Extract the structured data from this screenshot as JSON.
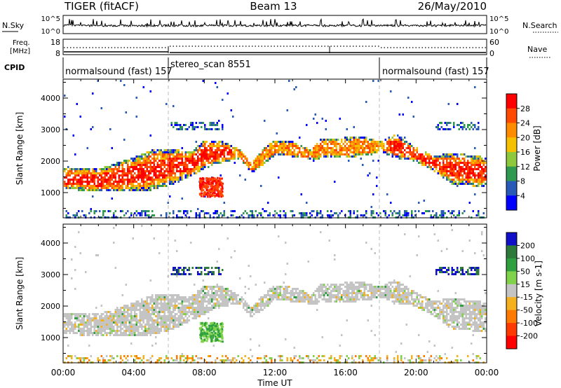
{
  "header": {
    "station": "TIGER (fitACF)",
    "beam": "Beam 13",
    "date": "26/May/2010"
  },
  "top_panels": {
    "nsky_label": "N.Sky",
    "nsky_ticks": [
      "10^5",
      "10^0"
    ],
    "nsearch_label": "N.Search",
    "nsearch_ticks": [
      "10^5",
      "10^0"
    ],
    "freq_label_line1": "Freq.",
    "freq_label_line2": "[MHz]",
    "freq_ticks": [
      "18",
      "8"
    ],
    "nave_label": "Nave",
    "nave_ticks": [
      "60",
      "0"
    ],
    "cpid_label": "CPID",
    "cpid_segments": [
      {
        "label": "normalsound (fast) 157",
        "start_hr": 0,
        "end_hr": 6
      },
      {
        "label": "stereo_scan 8551",
        "start_hr": 6,
        "end_hr": 18
      },
      {
        "label": "normalsound (fast) 157",
        "start_hr": 18,
        "end_hr": 24
      }
    ]
  },
  "chart_data": [
    {
      "type": "heatmap",
      "parameter": "Power",
      "ylabel": "Slant Range [km]",
      "yticks": [
        1000,
        2000,
        3000,
        4000
      ],
      "ylim": [
        200,
        4600
      ],
      "xlim": [
        0,
        24
      ],
      "colorbar": {
        "label": "Power [dB]",
        "ticks": [
          "28",
          "24",
          "20",
          "16",
          "12",
          "8",
          "4"
        ],
        "colors": [
          "#ff0000",
          "#ff4a00",
          "#ff8c00",
          "#f5c000",
          "#8ec83c",
          "#2f9a4f",
          "#2a5ab8",
          "#0000ff"
        ]
      }
    },
    {
      "type": "heatmap",
      "parameter": "Velocity",
      "ylabel": "Slant Range [km]",
      "yticks": [
        1000,
        2000,
        3000,
        4000
      ],
      "ylim": [
        200,
        4600
      ],
      "xlim": [
        0,
        24
      ],
      "colorbar": {
        "label": "Velocity [m s-1]",
        "ticks": [
          "200",
          "100",
          "50",
          "15",
          "-15",
          "-50",
          "-100",
          "-200"
        ],
        "colors": [
          "#1010c8",
          "#2e7a3a",
          "#2ea040",
          "#7fd24a",
          "#c4c4c4",
          "#f5b020",
          "#ff7a00",
          "#ff3a00",
          "#ff0000"
        ]
      }
    }
  ],
  "xaxis": {
    "label": "Time UT",
    "ticks": [
      "00:00",
      "04:00",
      "08:00",
      "12:00",
      "16:00",
      "20:00",
      "00:00"
    ]
  }
}
